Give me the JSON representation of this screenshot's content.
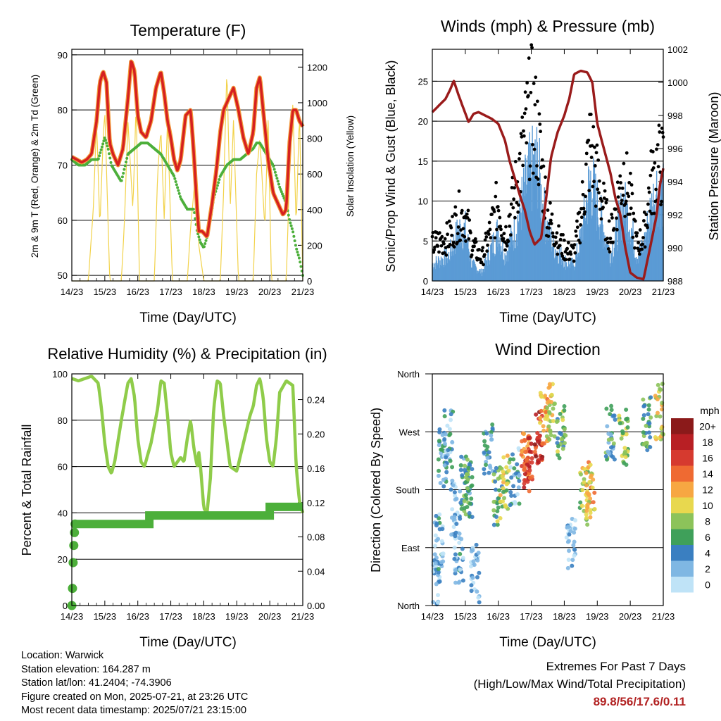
{
  "panels": {
    "temperature": {
      "title": "Temperature (F)",
      "xlabel": "Time (Day/UTC)",
      "ylabel_left": "2m & 9m T (Red, Orange) & 2m Td (Green)",
      "ylabel_right": "Solar Insolation (Yellow)"
    },
    "winds": {
      "title": "Winds (mph) & Pressure (mb)",
      "xlabel": "Time (Day/UTC)",
      "ylabel_left": "Sonic/Prop Wind & Gust (Blue, Black)",
      "ylabel_right": "Station Pressure (Maroon)"
    },
    "humidity": {
      "title": "Relative Humidity (%) & Precipitation (in)",
      "xlabel": "Time (Day/UTC)",
      "ylabel_left": "Percent & Total Rainfall"
    },
    "direction": {
      "title": "Wind Direction",
      "xlabel": "Time (Day/UTC)",
      "ylabel_left": "Direction (Colored By Speed)",
      "legend_title": "mph"
    }
  },
  "footer": {
    "location": "Location: Warwick",
    "elevation": "Station elevation: 164.287 m",
    "latlon": "Station lat/lon: 41.2404; -74.3906",
    "created": "Figure created on Mon, 2025-07-21, at 23:26 UTC",
    "recent": "Most recent data timestamp: 2025/07/21 23:15:00"
  },
  "extremes": {
    "line1": "Extremes For Past 7 Days",
    "line2": "(High/Low/Max Wind/Total Precipitation)",
    "values": "89.8/56/17.6/0.11"
  },
  "chart_data": [
    {
      "id": "temperature",
      "type": "line",
      "title": "Temperature (F)",
      "xlabel": "Time (Day/UTC)",
      "x_ticks": [
        "14/23",
        "15/23",
        "16/23",
        "17/23",
        "18/23",
        "19/23",
        "20/23",
        "21/23"
      ],
      "xlim": [
        0,
        7
      ],
      "ylim_left": [
        49,
        91
      ],
      "y_ticks_left": [
        "50",
        "60",
        "70",
        "80",
        "90"
      ],
      "ylim_right": [
        0,
        1300
      ],
      "y_ticks_right": [
        "0",
        "200",
        "400",
        "600",
        "800",
        "1000",
        "1200"
      ],
      "series": [
        {
          "name": "2m T",
          "color": "#d62020",
          "axis": "left",
          "x": [
            0,
            0.15,
            0.3,
            0.45,
            0.6,
            0.75,
            0.85,
            0.95,
            1.05,
            1.15,
            1.25,
            1.4,
            1.55,
            1.7,
            1.8,
            1.9,
            2.0,
            2.1,
            2.25,
            2.4,
            2.55,
            2.7,
            2.8,
            2.9,
            3.0,
            3.1,
            3.2,
            3.3,
            3.45,
            3.6,
            3.7,
            3.8,
            3.85,
            3.95,
            4.1,
            4.25,
            4.4,
            4.5,
            4.6,
            4.75,
            4.9,
            5.05,
            5.2,
            5.35,
            5.5,
            5.6,
            5.7,
            5.8,
            5.95,
            6.1,
            6.25,
            6.4,
            6.5,
            6.6,
            6.7,
            6.8,
            6.9,
            7.0
          ],
          "y": [
            71.5,
            71,
            70.5,
            71,
            72,
            78,
            85,
            87,
            85,
            74,
            72,
            70,
            73,
            82,
            89,
            87,
            79,
            76,
            75,
            78,
            84,
            87,
            83,
            78,
            75,
            71,
            69,
            71,
            79,
            80,
            72,
            62,
            58,
            58,
            57,
            63,
            70,
            76,
            80,
            82,
            84,
            80,
            75,
            72,
            76,
            84,
            86,
            80,
            71,
            65,
            63,
            61,
            62,
            74,
            80,
            80,
            78,
            77
          ]
        },
        {
          "name": "2m Td",
          "color": "#4caf3a",
          "axis": "left",
          "x": [
            0,
            0.2,
            0.4,
            0.6,
            0.8,
            1.0,
            1.1,
            1.2,
            1.3,
            1.5,
            1.7,
            1.9,
            2.1,
            2.3,
            2.5,
            2.7,
            2.9,
            3.1,
            3.3,
            3.5,
            3.7,
            3.8,
            3.9,
            4.0,
            4.1,
            4.2,
            4.3,
            4.5,
            4.7,
            4.9,
            5.1,
            5.3,
            5.5,
            5.6,
            5.7,
            5.9,
            6.1,
            6.3,
            6.5,
            6.6,
            6.7,
            6.8,
            6.9,
            7.0
          ],
          "y": [
            71,
            70,
            70,
            71,
            71,
            75,
            73,
            70,
            69,
            67,
            72,
            73,
            74,
            74,
            73,
            72,
            70,
            68,
            64,
            62,
            62,
            58,
            56,
            55,
            57,
            60,
            64,
            68,
            70,
            71,
            71,
            72,
            73,
            74,
            74,
            72,
            70,
            66,
            63,
            60,
            58,
            55,
            53,
            50
          ]
        },
        {
          "name": "Solar Insolation",
          "color": "#f2d24a",
          "axis": "right",
          "x": [
            0,
            0.5,
            0.65,
            0.75,
            0.85,
            0.95,
            1.0,
            1.15,
            1.5,
            1.6,
            1.7,
            1.85,
            1.95,
            2.05,
            2.5,
            2.6,
            2.7,
            2.8,
            2.9,
            3.05,
            3.5,
            3.6,
            3.75,
            3.85,
            4.0,
            4.5,
            4.6,
            4.7,
            4.8,
            4.9,
            5.05,
            5.5,
            5.6,
            5.7,
            5.85,
            5.95,
            6.05,
            6.5,
            6.6,
            6.7,
            6.8,
            6.9,
            7.0
          ],
          "y": [
            0,
            0,
            400,
            900,
            300,
            800,
            950,
            0,
            0,
            350,
            900,
            400,
            1000,
            0,
            0,
            600,
            850,
            350,
            900,
            0,
            0,
            300,
            600,
            200,
            0,
            0,
            500,
            1200,
            400,
            900,
            0,
            0,
            600,
            800,
            300,
            900,
            0,
            0,
            600,
            1000,
            300,
            950,
            0
          ]
        }
      ]
    },
    {
      "id": "winds",
      "type": "line",
      "title": "Winds (mph) & Pressure (mb)",
      "xlabel": "Time (Day/UTC)",
      "x_ticks": [
        "14/23",
        "15/23",
        "16/23",
        "17/23",
        "18/23",
        "19/23",
        "20/23",
        "21/23"
      ],
      "xlim": [
        0,
        7
      ],
      "ylim_left": [
        0,
        29
      ],
      "y_ticks_left": [
        "0",
        "5",
        "10",
        "15",
        "20",
        "25"
      ],
      "ylim_right": [
        988,
        1002
      ],
      "y_ticks_right": [
        "988",
        "990",
        "992",
        "994",
        "996",
        "998",
        "1000",
        "1002"
      ],
      "series": [
        {
          "name": "Station Pressure",
          "color": "#9a1b1b",
          "axis": "right",
          "x": [
            0,
            0.2,
            0.4,
            0.55,
            0.65,
            0.8,
            0.95,
            1.1,
            1.25,
            1.4,
            1.6,
            1.8,
            2.0,
            2.2,
            2.35,
            2.5,
            2.65,
            2.8,
            2.95,
            3.1,
            3.3,
            3.45,
            3.6,
            3.8,
            4.0,
            4.15,
            4.3,
            4.5,
            4.7,
            4.85,
            5.0,
            5.2,
            5.4,
            5.55,
            5.7,
            5.85,
            6.0,
            6.2,
            6.4,
            6.6,
            6.8,
            6.9,
            7.0
          ],
          "y": [
            998.2,
            998.6,
            999,
            999.6,
            1000.1,
            999.2,
            998.4,
            997.6,
            998.1,
            998.2,
            998,
            997.8,
            997.5,
            996.5,
            995.2,
            994.2,
            993.2,
            992.3,
            991,
            990.2,
            990.6,
            993,
            995.5,
            997,
            998,
            999,
            1000.5,
            1000.7,
            1000.6,
            1000,
            997.5,
            996,
            994.5,
            993,
            992,
            990,
            988.5,
            988.2,
            988.1,
            990,
            992,
            993.8,
            994.8
          ]
        },
        {
          "name": "Sonic/Prop Wind",
          "color": "#5b9bd5",
          "axis": "left",
          "marker": "line-dense",
          "x": [
            0,
            0.5,
            0.8,
            1.0,
            1.2,
            1.5,
            1.7,
            2.0,
            2.2,
            2.5,
            2.7,
            2.9,
            3.0,
            3.2,
            3.3,
            3.5,
            3.7,
            3.9,
            4.1,
            4.3,
            4.5,
            4.7,
            4.8,
            5.0,
            5.2,
            5.4,
            5.6,
            5.8,
            6.0,
            6.2,
            6.4,
            6.6,
            6.8,
            7.0
          ],
          "y": [
            2,
            3,
            6,
            6,
            2,
            1,
            3,
            6,
            3,
            6,
            9,
            12,
            13,
            14,
            10,
            6,
            4,
            3,
            2,
            2,
            5,
            10,
            12,
            9,
            6,
            3,
            6,
            9,
            7,
            3,
            4,
            8,
            11,
            10
          ]
        },
        {
          "name": "Gust",
          "color": "#000000",
          "axis": "left",
          "marker": "dot",
          "x": [
            0,
            0.5,
            0.8,
            1.0,
            1.2,
            1.5,
            1.7,
            2.0,
            2.2,
            2.5,
            2.7,
            2.9,
            3.0,
            3.2,
            3.3,
            3.5,
            3.7,
            3.9,
            4.1,
            4.3,
            4.5,
            4.7,
            4.8,
            5.0,
            5.2,
            5.4,
            5.6,
            5.8,
            6.0,
            6.2,
            6.4,
            6.6,
            6.8,
            7.0
          ],
          "y": [
            5,
            6,
            9,
            9,
            5,
            3,
            6,
            11,
            6,
            12,
            17,
            22,
            24,
            20,
            16,
            9,
            7,
            5,
            4,
            4,
            9,
            16,
            19,
            14,
            10,
            6,
            11,
            15,
            11,
            5,
            6,
            13,
            16,
            16
          ]
        }
      ]
    },
    {
      "id": "humidity",
      "type": "line",
      "title": "Relative Humidity (%) & Precipitation (in)",
      "xlabel": "Time (Day/UTC)",
      "x_ticks": [
        "14/23",
        "15/23",
        "16/23",
        "17/23",
        "18/23",
        "19/23",
        "20/23",
        "21/23"
      ],
      "xlim": [
        0,
        7
      ],
      "ylim_left": [
        0,
        100
      ],
      "y_ticks_left": [
        "0",
        "20",
        "40",
        "60",
        "80",
        "100"
      ],
      "ylim_right": [
        0,
        0.27
      ],
      "y_ticks_right": [
        "0.00",
        "0.04",
        "0.08",
        "0.12",
        "0.16",
        "0.20",
        "0.24"
      ],
      "series": [
        {
          "name": "Relative Humidity",
          "color": "#8fcc4a",
          "axis": "left",
          "x": [
            0,
            0.2,
            0.4,
            0.6,
            0.8,
            0.9,
            1.0,
            1.1,
            1.2,
            1.3,
            1.5,
            1.7,
            1.8,
            1.9,
            2.0,
            2.1,
            2.2,
            2.4,
            2.6,
            2.7,
            2.8,
            2.9,
            3.0,
            3.1,
            3.3,
            3.4,
            3.5,
            3.6,
            3.7,
            3.8,
            3.85,
            3.9,
            4.0,
            4.1,
            4.2,
            4.3,
            4.4,
            4.5,
            4.6,
            4.8,
            5.0,
            5.2,
            5.4,
            5.5,
            5.6,
            5.7,
            5.8,
            5.9,
            6.0,
            6.1,
            6.2,
            6.3,
            6.5,
            6.7,
            6.8,
            6.9,
            7.0
          ],
          "y": [
            98,
            97,
            98,
            99,
            96,
            85,
            70,
            60,
            57,
            62,
            80,
            96,
            98,
            90,
            72,
            62,
            60,
            70,
            85,
            97,
            96,
            82,
            66,
            60,
            64,
            62,
            72,
            80,
            68,
            60,
            66,
            60,
            42,
            40,
            55,
            85,
            97,
            96,
            82,
            60,
            58,
            70,
            82,
            86,
            95,
            98,
            90,
            72,
            62,
            60,
            72,
            92,
            97,
            95,
            60,
            45,
            40
          ]
        },
        {
          "name": "Total Rainfall",
          "color": "#4caf3a",
          "axis": "right",
          "x": [
            0,
            0.02,
            0.04,
            0.06,
            0.08,
            0.1,
            0.5,
            1.0,
            1.5,
            2.0,
            2.3,
            2.35,
            3.0,
            4.0,
            5.0,
            5.7,
            6.0,
            6.5,
            7.0
          ],
          "y": [
            0.0,
            0.02,
            0.05,
            0.07,
            0.085,
            0.095,
            0.095,
            0.095,
            0.095,
            0.095,
            0.095,
            0.105,
            0.105,
            0.105,
            0.105,
            0.105,
            0.115,
            0.115,
            0.115
          ]
        }
      ]
    },
    {
      "id": "direction",
      "type": "scatter",
      "title": "Wind Direction",
      "xlabel": "Time (Day/UTC)",
      "x_ticks": [
        "14/23",
        "15/23",
        "16/23",
        "17/23",
        "18/23",
        "19/23",
        "20/23",
        "21/23"
      ],
      "xlim": [
        0,
        7
      ],
      "y_ticks": [
        "North",
        "East",
        "South",
        "West",
        "North"
      ],
      "ylim": [
        0,
        360
      ],
      "colorbar": {
        "title": "mph",
        "labels": [
          "20+",
          "18",
          "16",
          "14",
          "12",
          "10",
          "8",
          "6",
          "4",
          "2",
          "0"
        ],
        "colors": [
          "#8b1a1a",
          "#b81f24",
          "#d63a2f",
          "#ef6a32",
          "#f7a742",
          "#e8d84e",
          "#8cc35a",
          "#3fa05a",
          "#3a7fc1",
          "#7fb7e3",
          "#bfe3f7"
        ]
      },
      "clusters": [
        {
          "x": 0.1,
          "dir": 30,
          "speed": 2
        },
        {
          "x": 0.2,
          "dir": 100,
          "speed": 3
        },
        {
          "x": 0.3,
          "dir": 230,
          "speed": 4
        },
        {
          "x": 0.5,
          "dir": 260,
          "speed": 3
        },
        {
          "x": 0.7,
          "dir": 150,
          "speed": 2
        },
        {
          "x": 0.8,
          "dir": 70,
          "speed": 3
        },
        {
          "x": 1.0,
          "dir": 190,
          "speed": 5
        },
        {
          "x": 1.1,
          "dir": 180,
          "speed": 6
        },
        {
          "x": 1.3,
          "dir": 50,
          "speed": 2
        },
        {
          "x": 1.7,
          "dir": 240,
          "speed": 4
        },
        {
          "x": 2.0,
          "dir": 170,
          "speed": 7
        },
        {
          "x": 2.2,
          "dir": 190,
          "speed": 9
        },
        {
          "x": 2.5,
          "dir": 200,
          "speed": 3
        },
        {
          "x": 2.8,
          "dir": 230,
          "speed": 14
        },
        {
          "x": 2.9,
          "dir": 220,
          "speed": 16
        },
        {
          "x": 3.2,
          "dir": 260,
          "speed": 17
        },
        {
          "x": 3.4,
          "dir": 290,
          "speed": 12
        },
        {
          "x": 3.6,
          "dir": 300,
          "speed": 10
        },
        {
          "x": 3.9,
          "dir": 270,
          "speed": 7
        },
        {
          "x": 4.2,
          "dir": 100,
          "speed": 2
        },
        {
          "x": 4.6,
          "dir": 170,
          "speed": 9
        },
        {
          "x": 4.8,
          "dir": 180,
          "speed": 11
        },
        {
          "x": 5.4,
          "dir": 270,
          "speed": 5
        },
        {
          "x": 5.8,
          "dir": 260,
          "speed": 8
        },
        {
          "x": 6.5,
          "dir": 280,
          "speed": 6
        },
        {
          "x": 6.9,
          "dir": 300,
          "speed": 10
        }
      ]
    }
  ]
}
